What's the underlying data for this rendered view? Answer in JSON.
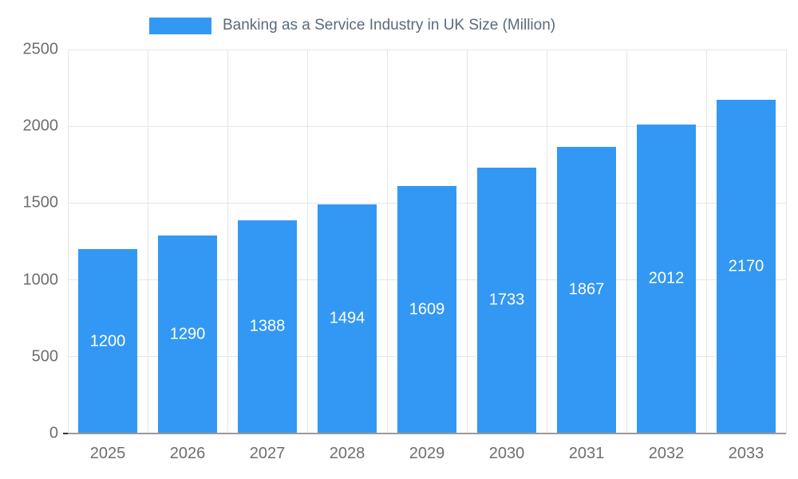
{
  "chart": {
    "legend": {
      "swatch_color": "#3398f4",
      "label": "Banking as a Service Industry in UK Size (Million)"
    }
  },
  "chart_data": {
    "type": "bar",
    "title": "Banking as a Service Industry in UK Size (Million)",
    "categories": [
      "2025",
      "2026",
      "2027",
      "2028",
      "2029",
      "2030",
      "2031",
      "2032",
      "2033"
    ],
    "values": [
      1200,
      1290,
      1388,
      1494,
      1609,
      1733,
      1867,
      2012,
      2170
    ],
    "xlabel": "",
    "ylabel": "",
    "ylim": [
      0,
      2500
    ],
    "yticks": [
      0,
      500,
      1000,
      1500,
      2000,
      2500
    ],
    "bar_color": "#3398f4",
    "value_label_color": "#ffffff",
    "grid": true,
    "legend_position": "top"
  }
}
